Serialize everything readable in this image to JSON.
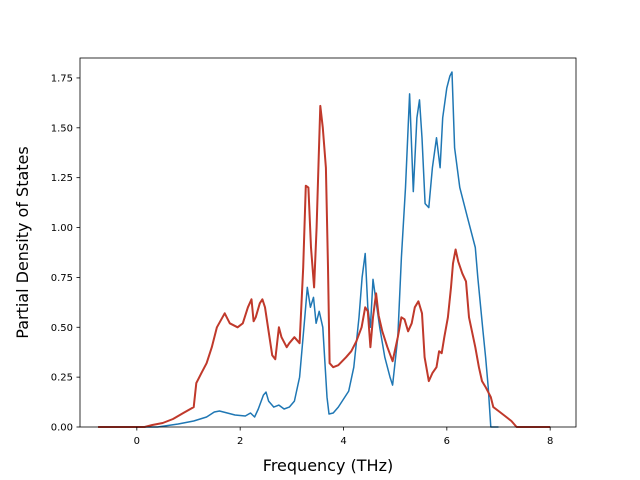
{
  "chart_data": {
    "type": "line",
    "title": "",
    "xlabel": "Frequency (THz)",
    "ylabel": "Partial Density of States",
    "xlim": [
      -1.1,
      8.5
    ],
    "ylim": [
      0,
      1.85
    ],
    "x_ticks": [
      0,
      2,
      4,
      6,
      8
    ],
    "y_ticks": [
      0.0,
      0.25,
      0.5,
      0.75,
      1.0,
      1.25,
      1.5,
      1.75
    ],
    "x_tick_labels": [
      "0",
      "2",
      "4",
      "6",
      "8"
    ],
    "y_tick_labels": [
      "0.00",
      "0.25",
      "0.50",
      "0.75",
      "1.00",
      "1.25",
      "1.50",
      "1.75"
    ],
    "grid": false,
    "legend": "none",
    "series": [
      {
        "color": "#1f77b4",
        "line_width": 1.5,
        "points": [
          [
            -0.75,
            0.0
          ],
          [
            0.4,
            0.0
          ],
          [
            0.8,
            0.015
          ],
          [
            1.1,
            0.03
          ],
          [
            1.35,
            0.05
          ],
          [
            1.5,
            0.075
          ],
          [
            1.6,
            0.08
          ],
          [
            1.75,
            0.07
          ],
          [
            1.9,
            0.06
          ],
          [
            2.1,
            0.055
          ],
          [
            2.2,
            0.07
          ],
          [
            2.28,
            0.05
          ],
          [
            2.35,
            0.09
          ],
          [
            2.45,
            0.16
          ],
          [
            2.5,
            0.175
          ],
          [
            2.55,
            0.13
          ],
          [
            2.65,
            0.1
          ],
          [
            2.75,
            0.11
          ],
          [
            2.85,
            0.09
          ],
          [
            2.95,
            0.1
          ],
          [
            3.05,
            0.13
          ],
          [
            3.15,
            0.25
          ],
          [
            3.25,
            0.55
          ],
          [
            3.3,
            0.7
          ],
          [
            3.36,
            0.6
          ],
          [
            3.42,
            0.65
          ],
          [
            3.47,
            0.52
          ],
          [
            3.53,
            0.58
          ],
          [
            3.6,
            0.5
          ],
          [
            3.68,
            0.15
          ],
          [
            3.72,
            0.065
          ],
          [
            3.8,
            0.07
          ],
          [
            3.9,
            0.1
          ],
          [
            4.0,
            0.14
          ],
          [
            4.1,
            0.18
          ],
          [
            4.2,
            0.3
          ],
          [
            4.3,
            0.55
          ],
          [
            4.36,
            0.75
          ],
          [
            4.42,
            0.87
          ],
          [
            4.47,
            0.6
          ],
          [
            4.52,
            0.5
          ],
          [
            4.57,
            0.74
          ],
          [
            4.62,
            0.65
          ],
          [
            4.7,
            0.5
          ],
          [
            4.8,
            0.35
          ],
          [
            4.9,
            0.25
          ],
          [
            4.95,
            0.21
          ],
          [
            5.05,
            0.45
          ],
          [
            5.12,
            0.85
          ],
          [
            5.2,
            1.2
          ],
          [
            5.28,
            1.67
          ],
          [
            5.35,
            1.18
          ],
          [
            5.42,
            1.55
          ],
          [
            5.47,
            1.64
          ],
          [
            5.52,
            1.45
          ],
          [
            5.58,
            1.12
          ],
          [
            5.65,
            1.1
          ],
          [
            5.72,
            1.3
          ],
          [
            5.8,
            1.45
          ],
          [
            5.87,
            1.3
          ],
          [
            5.92,
            1.55
          ],
          [
            6.0,
            1.7
          ],
          [
            6.06,
            1.76
          ],
          [
            6.1,
            1.78
          ],
          [
            6.15,
            1.4
          ],
          [
            6.25,
            1.2
          ],
          [
            6.4,
            1.05
          ],
          [
            6.55,
            0.9
          ],
          [
            6.6,
            0.75
          ],
          [
            6.7,
            0.48
          ],
          [
            6.75,
            0.35
          ],
          [
            6.8,
            0.2
          ],
          [
            6.85,
            0.0
          ],
          [
            7.0,
            0.0
          ]
        ]
      },
      {
        "color": "#c0392b",
        "line_width": 2.0,
        "points": [
          [
            -0.75,
            0.0
          ],
          [
            0.15,
            0.0
          ],
          [
            0.3,
            0.01
          ],
          [
            0.5,
            0.02
          ],
          [
            0.7,
            0.04
          ],
          [
            0.9,
            0.07
          ],
          [
            1.1,
            0.1
          ],
          [
            1.15,
            0.22
          ],
          [
            1.25,
            0.27
          ],
          [
            1.35,
            0.32
          ],
          [
            1.45,
            0.4
          ],
          [
            1.55,
            0.5
          ],
          [
            1.7,
            0.57
          ],
          [
            1.8,
            0.52
          ],
          [
            1.95,
            0.5
          ],
          [
            2.05,
            0.52
          ],
          [
            2.15,
            0.6
          ],
          [
            2.22,
            0.64
          ],
          [
            2.26,
            0.53
          ],
          [
            2.3,
            0.55
          ],
          [
            2.38,
            0.62
          ],
          [
            2.43,
            0.64
          ],
          [
            2.48,
            0.6
          ],
          [
            2.55,
            0.48
          ],
          [
            2.62,
            0.36
          ],
          [
            2.68,
            0.34
          ],
          [
            2.75,
            0.5
          ],
          [
            2.8,
            0.45
          ],
          [
            2.9,
            0.4
          ],
          [
            2.95,
            0.42
          ],
          [
            3.05,
            0.45
          ],
          [
            3.15,
            0.42
          ],
          [
            3.22,
            0.8
          ],
          [
            3.27,
            1.21
          ],
          [
            3.32,
            1.2
          ],
          [
            3.37,
            0.9
          ],
          [
            3.43,
            0.7
          ],
          [
            3.48,
            1.0
          ],
          [
            3.52,
            1.35
          ],
          [
            3.55,
            1.61
          ],
          [
            3.6,
            1.5
          ],
          [
            3.66,
            1.3
          ],
          [
            3.7,
            0.8
          ],
          [
            3.73,
            0.32
          ],
          [
            3.8,
            0.3
          ],
          [
            3.9,
            0.31
          ],
          [
            4.05,
            0.35
          ],
          [
            4.15,
            0.38
          ],
          [
            4.25,
            0.43
          ],
          [
            4.35,
            0.5
          ],
          [
            4.42,
            0.6
          ],
          [
            4.47,
            0.58
          ],
          [
            4.52,
            0.4
          ],
          [
            4.57,
            0.55
          ],
          [
            4.63,
            0.67
          ],
          [
            4.68,
            0.56
          ],
          [
            4.75,
            0.48
          ],
          [
            4.85,
            0.4
          ],
          [
            4.95,
            0.33
          ],
          [
            5.05,
            0.45
          ],
          [
            5.12,
            0.55
          ],
          [
            5.18,
            0.54
          ],
          [
            5.25,
            0.48
          ],
          [
            5.32,
            0.52
          ],
          [
            5.38,
            0.6
          ],
          [
            5.45,
            0.63
          ],
          [
            5.52,
            0.57
          ],
          [
            5.57,
            0.35
          ],
          [
            5.65,
            0.23
          ],
          [
            5.72,
            0.27
          ],
          [
            5.8,
            0.3
          ],
          [
            5.85,
            0.38
          ],
          [
            5.9,
            0.37
          ],
          [
            5.95,
            0.45
          ],
          [
            6.02,
            0.55
          ],
          [
            6.08,
            0.7
          ],
          [
            6.12,
            0.82
          ],
          [
            6.17,
            0.89
          ],
          [
            6.22,
            0.83
          ],
          [
            6.3,
            0.77
          ],
          [
            6.37,
            0.73
          ],
          [
            6.43,
            0.55
          ],
          [
            6.55,
            0.4
          ],
          [
            6.62,
            0.3
          ],
          [
            6.68,
            0.23
          ],
          [
            6.75,
            0.2
          ],
          [
            6.85,
            0.15
          ],
          [
            6.9,
            0.1
          ],
          [
            7.0,
            0.08
          ],
          [
            7.1,
            0.06
          ],
          [
            7.25,
            0.03
          ],
          [
            7.35,
            0.0
          ],
          [
            8.0,
            0.0
          ]
        ]
      }
    ]
  }
}
